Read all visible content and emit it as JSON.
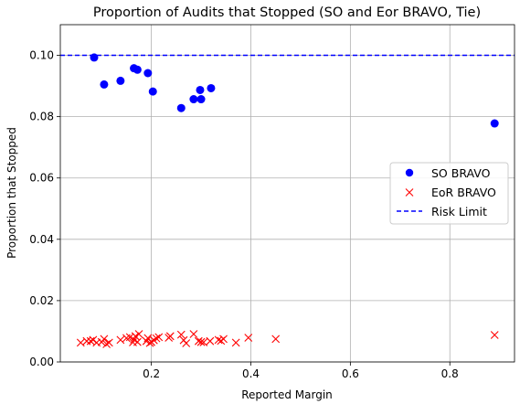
{
  "chart_data": {
    "type": "scatter",
    "title": "Proportion of Audits that Stopped (SO and Eor BRAVO, Tie)",
    "xlabel": "Reported Margin",
    "ylabel": "Proportion that Stopped",
    "xlim": [
      0.017,
      0.93
    ],
    "ylim": [
      0.0,
      0.11
    ],
    "xticks": [
      0.2,
      0.4,
      0.6,
      0.8
    ],
    "xtick_labels": [
      "0.2",
      "0.4",
      "0.6",
      "0.8"
    ],
    "yticks": [
      0.0,
      0.02,
      0.04,
      0.06,
      0.08,
      0.1
    ],
    "ytick_labels": [
      "0.00",
      "0.02",
      "0.04",
      "0.06",
      "0.08",
      "0.10"
    ],
    "grid": true,
    "legend_position": "center-right",
    "series": [
      {
        "name": "SO BRAVO",
        "marker": "circle",
        "color": "#0000ff",
        "x": [
          0.085,
          0.105,
          0.138,
          0.165,
          0.172,
          0.193,
          0.203,
          0.26,
          0.285,
          0.298,
          0.3,
          0.32,
          0.89
        ],
        "y": [
          0.0993,
          0.0905,
          0.0917,
          0.0958,
          0.0953,
          0.0942,
          0.0882,
          0.0828,
          0.0857,
          0.0887,
          0.0857,
          0.0893,
          0.0778
        ]
      },
      {
        "name": "EoR BRAVO",
        "marker": "x",
        "color": "#ff0000",
        "x": [
          0.058,
          0.07,
          0.078,
          0.083,
          0.09,
          0.1,
          0.105,
          0.11,
          0.115,
          0.138,
          0.15,
          0.157,
          0.163,
          0.165,
          0.168,
          0.172,
          0.175,
          0.19,
          0.193,
          0.197,
          0.2,
          0.205,
          0.21,
          0.215,
          0.235,
          0.238,
          0.26,
          0.265,
          0.27,
          0.285,
          0.295,
          0.3,
          0.305,
          0.318,
          0.335,
          0.34,
          0.345,
          0.37,
          0.395,
          0.45,
          0.89
        ],
        "y": [
          0.0063,
          0.0068,
          0.0068,
          0.0072,
          0.0063,
          0.0065,
          0.0075,
          0.0058,
          0.0063,
          0.0072,
          0.0078,
          0.0081,
          0.0064,
          0.0073,
          0.0084,
          0.0065,
          0.0091,
          0.0068,
          0.0078,
          0.0062,
          0.0065,
          0.0071,
          0.0077,
          0.0081,
          0.0079,
          0.0084,
          0.0089,
          0.0071,
          0.0061,
          0.0091,
          0.0068,
          0.0065,
          0.0064,
          0.0068,
          0.0072,
          0.0069,
          0.0075,
          0.0063,
          0.0079,
          0.0075,
          0.0088
        ]
      },
      {
        "name": "Risk Limit",
        "marker": "dashed-line",
        "color": "#0000ff",
        "y": 0.1
      }
    ]
  }
}
